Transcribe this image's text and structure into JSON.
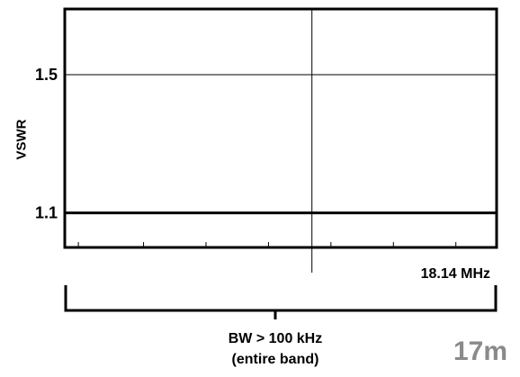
{
  "chart_data": {
    "type": "line",
    "ylabel": "VSWR",
    "y_ticks": [
      {
        "value": 1.5,
        "label": "1.5"
      },
      {
        "value": 1.1,
        "label": "1.1"
      }
    ],
    "ylim": [
      1.0,
      1.69
    ],
    "xlim": [
      18.049,
      18.208
    ],
    "marker": {
      "x": 18.14,
      "label": "18.14 MHz"
    },
    "series": [
      {
        "points": [
          [
            18.049,
            1.1
          ],
          [
            18.208,
            1.1
          ]
        ]
      }
    ],
    "minor_x_ticks": [
      18.054,
      18.078,
      18.101,
      18.124,
      18.147,
      18.17,
      18.193
    ],
    "bandwidth_label": {
      "line1": "BW > 100 kHz",
      "line2": "(entire band)"
    },
    "band_label": "17m",
    "grid": true,
    "colors": {
      "line": "#000000",
      "band_label": "#8a8a8a"
    }
  }
}
